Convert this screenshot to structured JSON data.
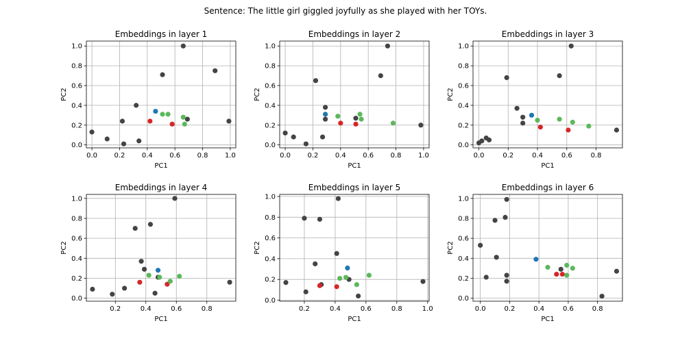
{
  "suptitle": "Sentence: The little girl giggled joyfully as she played with her TOYs.",
  "colors": {
    "other": "#444444",
    "blue": "#1f77b4",
    "red": "#d62728",
    "green": "#5cb85c"
  },
  "chart_data": [
    {
      "type": "scatter",
      "title": "Embeddings in layer 1",
      "xlabel": "PC1",
      "ylabel": "PC2",
      "xlim": [
        -0.04,
        1.04
      ],
      "ylim": [
        -0.03,
        1.05
      ],
      "xticks": [
        "0.0",
        "0.2",
        "0.4",
        "0.6",
        "0.8",
        "1.0"
      ],
      "yticks": [
        "0.0",
        "0.2",
        "0.4",
        "0.6",
        "0.8",
        "1.0"
      ],
      "grid": true,
      "series": [
        {
          "color": "other",
          "points": [
            [
              0.0,
              0.13
            ],
            [
              0.11,
              0.06
            ],
            [
              0.22,
              0.24
            ],
            [
              0.23,
              0.01
            ],
            [
              0.32,
              0.4
            ],
            [
              0.34,
              0.04
            ],
            [
              0.51,
              0.71
            ],
            [
              0.66,
              1.0
            ],
            [
              0.69,
              0.26
            ],
            [
              0.89,
              0.75
            ],
            [
              0.99,
              0.24
            ]
          ]
        },
        {
          "color": "blue",
          "points": [
            [
              0.46,
              0.34
            ]
          ]
        },
        {
          "color": "red",
          "points": [
            [
              0.42,
              0.24
            ],
            [
              0.58,
              0.21
            ]
          ]
        },
        {
          "color": "green",
          "points": [
            [
              0.51,
              0.31
            ],
            [
              0.55,
              0.31
            ],
            [
              0.66,
              0.28
            ],
            [
              0.67,
              0.21
            ]
          ]
        }
      ]
    },
    {
      "type": "scatter",
      "title": "Embeddings in layer 2",
      "xlabel": "PC1",
      "ylabel": "PC2",
      "xlim": [
        -0.04,
        1.04
      ],
      "ylim": [
        -0.03,
        1.05
      ],
      "xticks": [
        "0.0",
        "0.2",
        "0.4",
        "0.6",
        "0.8",
        "1.0"
      ],
      "yticks": [
        "0.0",
        "0.2",
        "0.4",
        "0.6",
        "0.8",
        "1.0"
      ],
      "grid": true,
      "series": [
        {
          "color": "other",
          "points": [
            [
              0.0,
              0.12
            ],
            [
              0.06,
              0.08
            ],
            [
              0.15,
              0.01
            ],
            [
              0.22,
              0.65
            ],
            [
              0.27,
              0.08
            ],
            [
              0.29,
              0.38
            ],
            [
              0.29,
              0.26
            ],
            [
              0.51,
              0.27
            ],
            [
              0.69,
              0.7
            ],
            [
              0.74,
              1.0
            ],
            [
              0.98,
              0.2
            ]
          ]
        },
        {
          "color": "blue",
          "points": [
            [
              0.29,
              0.31
            ]
          ]
        },
        {
          "color": "red",
          "points": [
            [
              0.4,
              0.22
            ],
            [
              0.51,
              0.21
            ]
          ]
        },
        {
          "color": "green",
          "points": [
            [
              0.38,
              0.29
            ],
            [
              0.54,
              0.31
            ],
            [
              0.55,
              0.26
            ],
            [
              0.78,
              0.22
            ]
          ]
        }
      ]
    },
    {
      "type": "scatter",
      "title": "Embeddings in layer 3",
      "xlabel": "PC1",
      "ylabel": "PC2",
      "xlim": [
        -0.04,
        0.98
      ],
      "ylim": [
        -0.03,
        1.05
      ],
      "xticks": [
        "0.0",
        "0.2",
        "0.4",
        "0.6",
        "0.8"
      ],
      "yticks": [
        "0.0",
        "0.2",
        "0.4",
        "0.6",
        "0.8",
        "1.0"
      ],
      "grid": true,
      "series": [
        {
          "color": "other",
          "points": [
            [
              0.0,
              0.02
            ],
            [
              0.02,
              0.04
            ],
            [
              0.05,
              0.07
            ],
            [
              0.07,
              0.05
            ],
            [
              0.19,
              0.68
            ],
            [
              0.26,
              0.37
            ],
            [
              0.3,
              0.28
            ],
            [
              0.3,
              0.22
            ],
            [
              0.55,
              0.7
            ],
            [
              0.63,
              1.0
            ],
            [
              0.94,
              0.15
            ]
          ]
        },
        {
          "color": "blue",
          "points": [
            [
              0.36,
              0.3
            ]
          ]
        },
        {
          "color": "red",
          "points": [
            [
              0.42,
              0.18
            ],
            [
              0.61,
              0.15
            ]
          ]
        },
        {
          "color": "green",
          "points": [
            [
              0.4,
              0.25
            ],
            [
              0.55,
              0.26
            ],
            [
              0.64,
              0.23
            ],
            [
              0.75,
              0.19
            ]
          ]
        }
      ]
    },
    {
      "type": "scatter",
      "title": "Embeddings in layer 4",
      "xlabel": "PC1",
      "ylabel": "PC2",
      "xlim": [
        0.01,
        0.99
      ],
      "ylim": [
        -0.03,
        1.04
      ],
      "xticks": [
        "0.2",
        "0.4",
        "0.6",
        "0.8"
      ],
      "yticks": [
        "0.0",
        "0.2",
        "0.4",
        "0.6",
        "0.8",
        "1.0"
      ],
      "grid": true,
      "series": [
        {
          "color": "other",
          "points": [
            [
              0.05,
              0.09
            ],
            [
              0.18,
              0.04
            ],
            [
              0.26,
              0.1
            ],
            [
              0.33,
              0.7
            ],
            [
              0.37,
              0.37
            ],
            [
              0.39,
              0.29
            ],
            [
              0.43,
              0.74
            ],
            [
              0.46,
              0.05
            ],
            [
              0.48,
              0.21
            ],
            [
              0.59,
              1.0
            ],
            [
              0.95,
              0.16
            ]
          ]
        },
        {
          "color": "blue",
          "points": [
            [
              0.48,
              0.28
            ]
          ]
        },
        {
          "color": "red",
          "points": [
            [
              0.36,
              0.16
            ],
            [
              0.54,
              0.14
            ]
          ]
        },
        {
          "color": "green",
          "points": [
            [
              0.42,
              0.23
            ],
            [
              0.49,
              0.21
            ],
            [
              0.56,
              0.17
            ],
            [
              0.62,
              0.22
            ]
          ]
        }
      ]
    },
    {
      "type": "scatter",
      "title": "Embeddings in layer 5",
      "xlabel": "PC1",
      "ylabel": "PC2",
      "xlim": [
        0.04,
        1.01
      ],
      "ylim": [
        -0.01,
        1.02
      ],
      "xticks": [
        "0.2",
        "0.4",
        "0.6",
        "0.8",
        "1.0"
      ],
      "yticks": [
        "0.0",
        "0.2",
        "0.4",
        "0.6",
        "0.8",
        "1.0"
      ],
      "grid": true,
      "series": [
        {
          "color": "other",
          "points": [
            [
              0.08,
              0.17
            ],
            [
              0.2,
              0.79
            ],
            [
              0.21,
              0.08
            ],
            [
              0.27,
              0.35
            ],
            [
              0.3,
              0.78
            ],
            [
              0.31,
              0.15
            ],
            [
              0.41,
              0.45
            ],
            [
              0.42,
              0.98
            ],
            [
              0.49,
              0.2
            ],
            [
              0.55,
              0.04
            ],
            [
              0.97,
              0.18
            ]
          ]
        },
        {
          "color": "blue",
          "points": [
            [
              0.48,
              0.31
            ]
          ]
        },
        {
          "color": "red",
          "points": [
            [
              0.3,
              0.14
            ],
            [
              0.41,
              0.13
            ]
          ]
        },
        {
          "color": "green",
          "points": [
            [
              0.43,
              0.21
            ],
            [
              0.47,
              0.22
            ],
            [
              0.54,
              0.15
            ],
            [
              0.62,
              0.24
            ]
          ]
        }
      ]
    },
    {
      "type": "scatter",
      "title": "Embeddings in layer 6",
      "xlabel": "PC1",
      "ylabel": "PC2",
      "xlim": [
        -0.05,
        0.97
      ],
      "ylim": [
        -0.03,
        1.04
      ],
      "xticks": [
        "0.0",
        "0.2",
        "0.4",
        "0.6",
        "0.8"
      ],
      "yticks": [
        "0.0",
        "0.2",
        "0.4",
        "0.6",
        "0.8",
        "1.0"
      ],
      "grid": true,
      "series": [
        {
          "color": "other",
          "points": [
            [
              0.0,
              0.53
            ],
            [
              0.04,
              0.21
            ],
            [
              0.1,
              0.78
            ],
            [
              0.11,
              0.41
            ],
            [
              0.17,
              0.81
            ],
            [
              0.18,
              0.99
            ],
            [
              0.18,
              0.17
            ],
            [
              0.18,
              0.23
            ],
            [
              0.55,
              0.29
            ],
            [
              0.83,
              0.02
            ],
            [
              0.93,
              0.27
            ]
          ]
        },
        {
          "color": "blue",
          "points": [
            [
              0.38,
              0.39
            ]
          ]
        },
        {
          "color": "red",
          "points": [
            [
              0.52,
              0.24
            ],
            [
              0.56,
              0.24
            ]
          ]
        },
        {
          "color": "green",
          "points": [
            [
              0.46,
              0.31
            ],
            [
              0.59,
              0.33
            ],
            [
              0.59,
              0.23
            ],
            [
              0.63,
              0.3
            ]
          ]
        }
      ]
    }
  ]
}
